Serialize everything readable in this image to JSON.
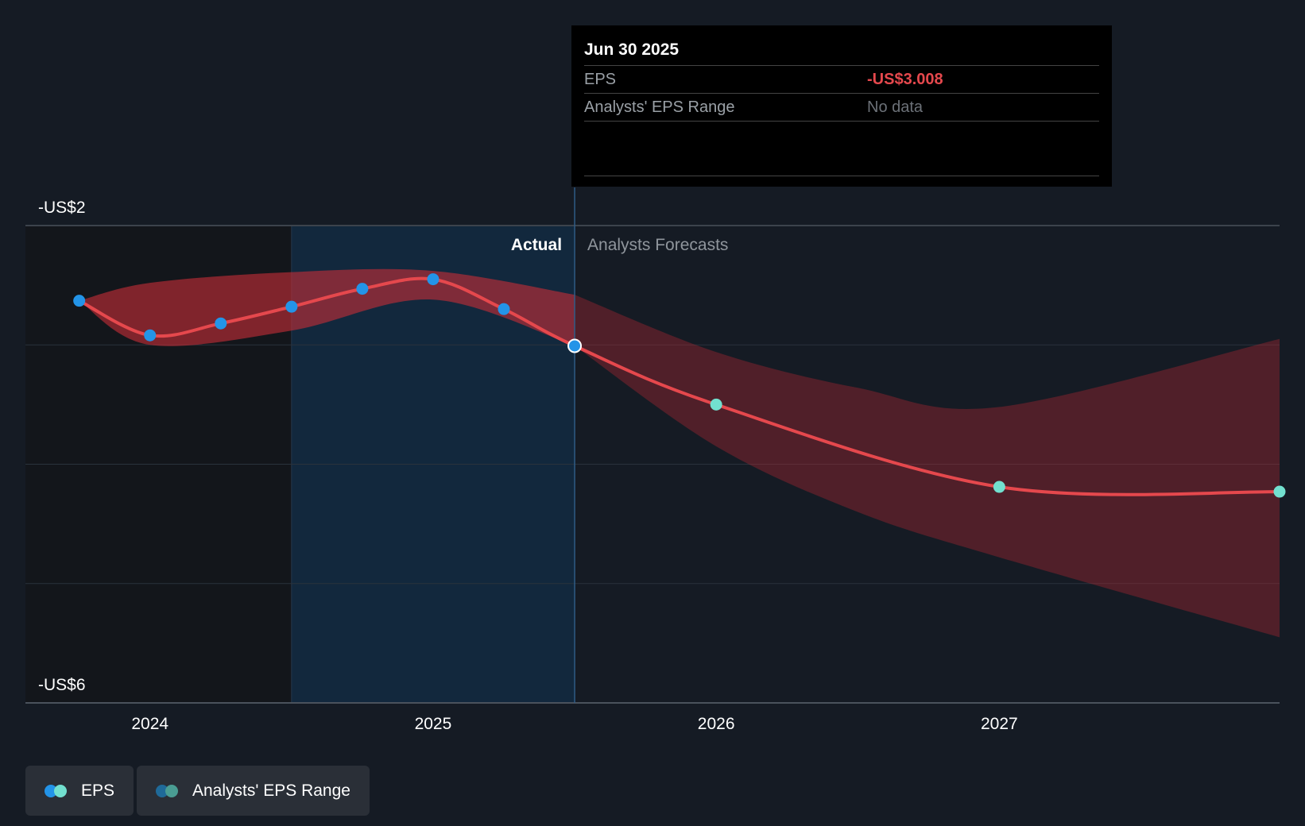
{
  "chart_data": {
    "type": "line",
    "title": "",
    "ylim": [
      -6,
      -2
    ],
    "xlim": [
      2023.56,
      2027.99
    ],
    "y_tick_labels": [
      "-US$2",
      "-US$6"
    ],
    "x_tick_labels": [
      "2024",
      "2025",
      "2026",
      "2027"
    ],
    "x_ticks": [
      2024,
      2025,
      2026,
      2027
    ],
    "gridlines_y": [
      -2,
      -3,
      -4,
      -5
    ],
    "past_region": [
      2023.56,
      2024.5
    ],
    "highlight_region": [
      2024.5,
      2025.5
    ],
    "divider_x": 2025.5,
    "region_labels": {
      "actual": "Actual",
      "forecast": "Analysts Forecasts"
    },
    "series": [
      {
        "name": "EPS",
        "color": "#e5484d",
        "actual_marker_color": "#2394e8",
        "forecast_marker_color": "#72e0cf",
        "x": [
          2023.75,
          2024.0,
          2024.25,
          2024.5,
          2024.75,
          2025.0,
          2025.25,
          2025.5,
          2026.0,
          2027.0,
          2027.99
        ],
        "values": [
          -2.63,
          -2.92,
          -2.82,
          -2.68,
          -2.53,
          -2.45,
          -2.7,
          -3.008,
          -3.5,
          -4.19,
          -4.23
        ]
      },
      {
        "name": "Analysts' EPS Range",
        "color": "#e5484d",
        "x": [
          2023.75,
          2024.0,
          2024.5,
          2025.0,
          2025.5,
          2026.0,
          2026.5,
          2027.0,
          2027.99
        ],
        "upper": [
          -2.63,
          -2.48,
          -2.39,
          -2.38,
          -2.58,
          -3.06,
          -3.36,
          -3.52,
          -2.95
        ],
        "lower": [
          -2.63,
          -3.0,
          -2.88,
          -2.62,
          -3.008,
          -3.85,
          -4.4,
          -4.78,
          -5.45
        ]
      }
    ]
  },
  "tooltip": {
    "date": "Jun 30 2025",
    "eps_label": "EPS",
    "eps_value": "-US$3.008",
    "range_label": "Analysts' EPS Range",
    "range_value": "No data"
  },
  "legend": {
    "items": [
      {
        "label": "EPS",
        "color_a": "#2394e8",
        "color_b": "#72e0cf"
      },
      {
        "label": "Analysts' EPS Range",
        "color_a": "#1f6a99",
        "color_b": "#4a9d93"
      }
    ]
  }
}
